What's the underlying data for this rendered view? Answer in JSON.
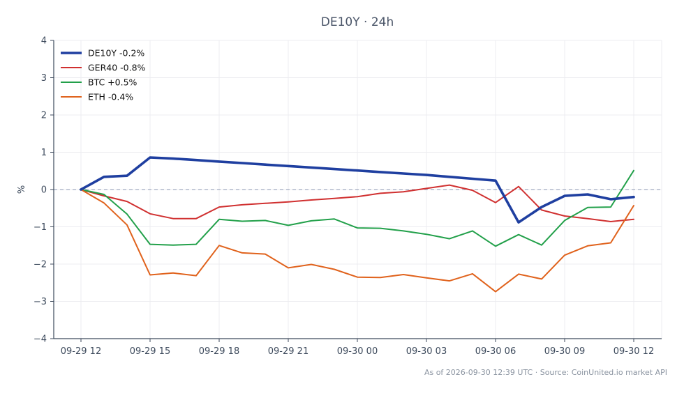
{
  "chart_data": {
    "type": "line",
    "title": "DE10Y · 24h",
    "xlabel": "",
    "ylabel": "%",
    "ylim": [
      -4,
      4
    ],
    "yticks": [
      4,
      3,
      2,
      1,
      0,
      -1,
      -2,
      -3,
      -4
    ],
    "ytick_labels": [
      "4",
      "3",
      "2",
      "1",
      "0",
      "−1",
      "−2",
      "−3",
      "−4"
    ],
    "x": [
      "09-29 12",
      "09-29 13",
      "09-29 14",
      "09-29 15",
      "09-29 16",
      "09-29 17",
      "09-29 18",
      "09-29 19",
      "09-29 20",
      "09-29 21",
      "09-29 22",
      "09-29 23",
      "09-30 00",
      "09-30 01",
      "09-30 02",
      "09-30 03",
      "09-30 04",
      "09-30 05",
      "09-30 06",
      "09-30 07",
      "09-30 08",
      "09-30 09",
      "09-30 10",
      "09-30 11",
      "09-30 12"
    ],
    "xticks": [
      "09-29 12",
      "09-29 15",
      "09-29 18",
      "09-29 21",
      "09-30 00",
      "09-30 03",
      "09-30 06",
      "09-30 09",
      "09-30 12"
    ],
    "grid": true,
    "zero_line": true,
    "legend_position": "top-left",
    "series": [
      {
        "name": "DE10Y -0.2%",
        "color": "#1f3fa0",
        "emphasis": true,
        "values": [
          0.0,
          0.34,
          0.37,
          0.86,
          0.83,
          0.79,
          0.75,
          0.71,
          0.67,
          0.63,
          0.59,
          0.55,
          0.51,
          0.47,
          0.43,
          0.39,
          0.34,
          0.29,
          0.24,
          -0.88,
          -0.47,
          -0.17,
          -0.13,
          -0.26,
          -0.2
        ]
      },
      {
        "name": "GER40 -0.8%",
        "color": "#d03030",
        "emphasis": false,
        "values": [
          0.0,
          -0.17,
          -0.32,
          -0.65,
          -0.78,
          -0.78,
          -0.47,
          -0.41,
          -0.37,
          -0.33,
          -0.28,
          -0.24,
          -0.19,
          -0.1,
          -0.06,
          0.03,
          0.12,
          -0.02,
          -0.35,
          0.08,
          -0.55,
          -0.71,
          -0.78,
          -0.86,
          -0.8
        ]
      },
      {
        "name": "BTC +0.5%",
        "color": "#22a04a",
        "emphasis": false,
        "values": [
          0.0,
          -0.13,
          -0.66,
          -1.47,
          -1.49,
          -1.47,
          -0.8,
          -0.85,
          -0.83,
          -0.96,
          -0.84,
          -0.79,
          -1.03,
          -1.04,
          -1.11,
          -1.2,
          -1.32,
          -1.11,
          -1.52,
          -1.21,
          -1.49,
          -0.83,
          -0.48,
          -0.47,
          0.51
        ]
      },
      {
        "name": "ETH -0.4%",
        "color": "#e0621c",
        "emphasis": false,
        "values": [
          0.0,
          -0.36,
          -0.95,
          -2.29,
          -2.24,
          -2.31,
          -1.5,
          -1.7,
          -1.73,
          -2.1,
          -2.01,
          -2.14,
          -2.35,
          -2.36,
          -2.28,
          -2.37,
          -2.45,
          -2.26,
          -2.74,
          -2.27,
          -2.4,
          -1.76,
          -1.51,
          -1.43,
          -0.43
        ]
      }
    ]
  },
  "footer": "As of 2026-09-30 12:39 UTC · Source: CoinUnited.io market API"
}
